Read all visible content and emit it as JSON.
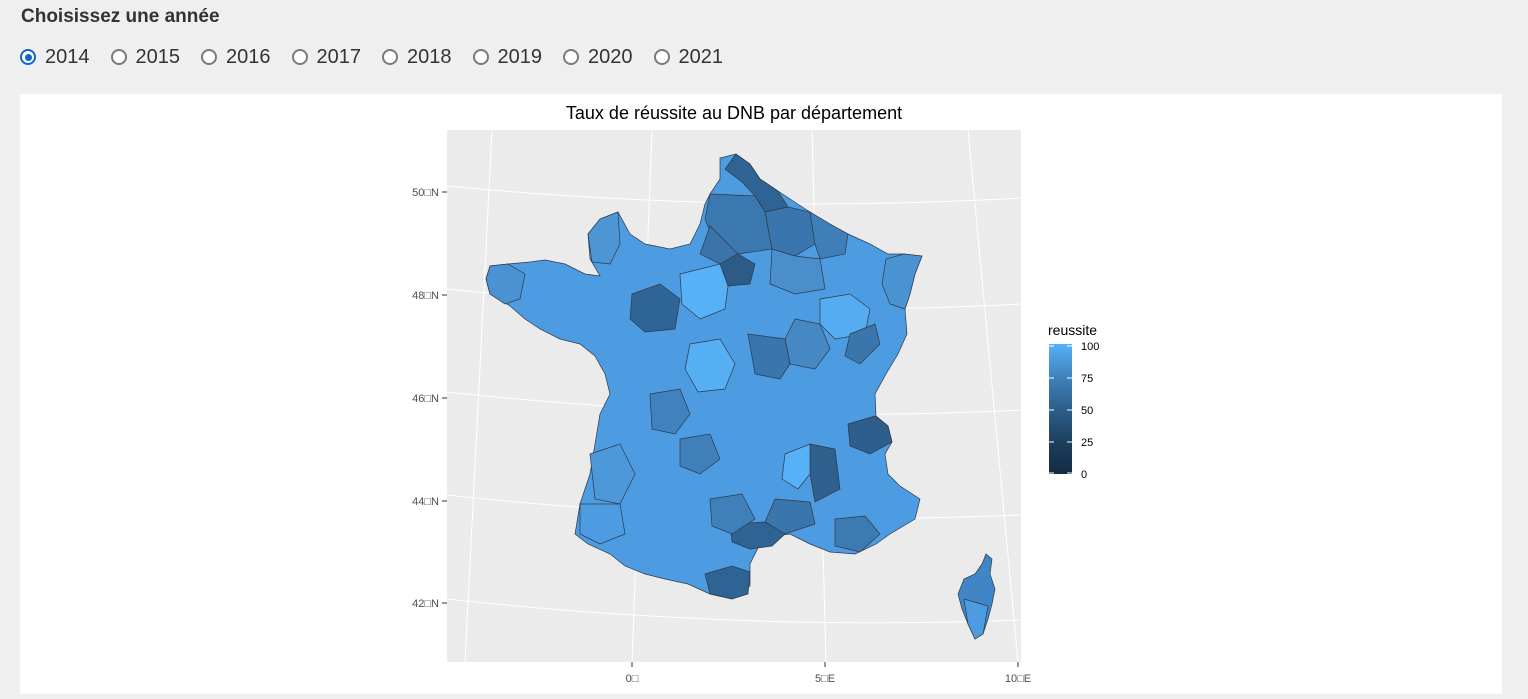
{
  "controls": {
    "title": "Choisissez une année",
    "years": [
      "2014",
      "2015",
      "2016",
      "2017",
      "2018",
      "2019",
      "2020",
      "2021"
    ],
    "selected": "2014"
  },
  "map": {
    "title": "Taux de réussite au DNB par département",
    "lat_labels": [
      "50□N",
      "48□N",
      "46□N",
      "44□N",
      "42□N"
    ],
    "lon_labels": [
      "0□",
      "5□E",
      "10□E"
    ],
    "colors": {
      "panel": "#ebebeb",
      "grid": "#ffffff",
      "low": "#132b43",
      "high": "#56b1f7"
    }
  },
  "legend": {
    "title": "reussite",
    "ticks": [
      "100",
      "75",
      "50",
      "25",
      "0"
    ]
  }
}
